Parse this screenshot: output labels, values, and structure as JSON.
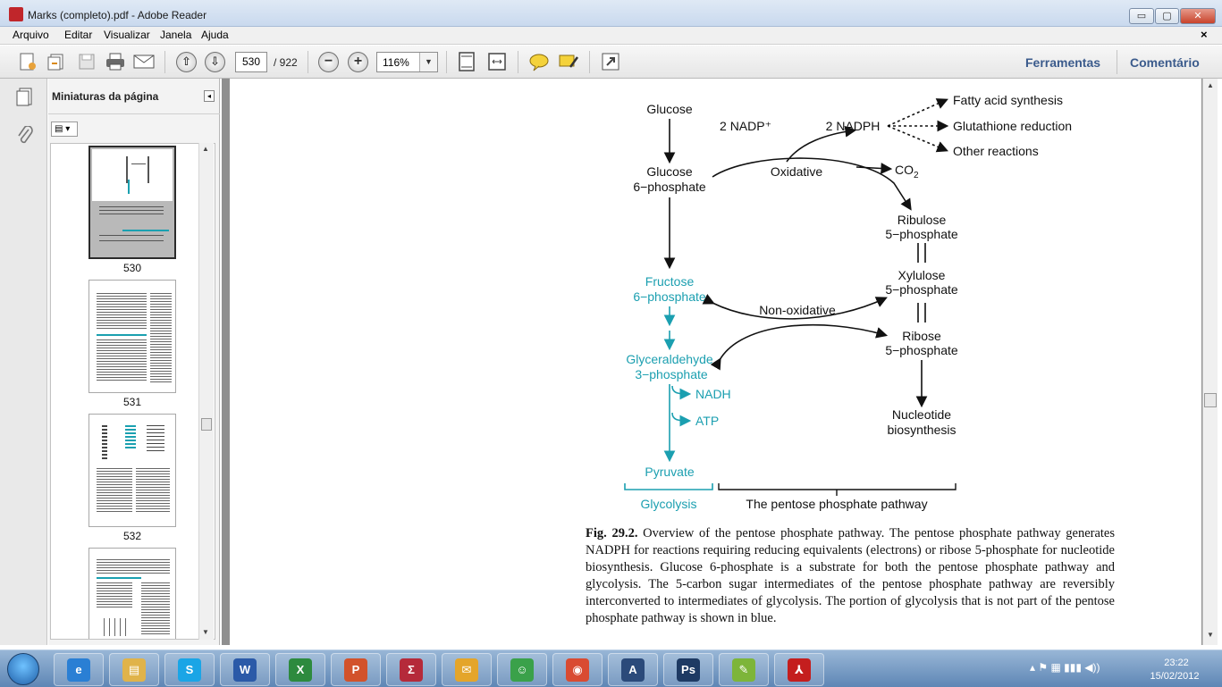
{
  "window": {
    "title": "Marks (completo).pdf - Adobe Reader",
    "min_label": "▭",
    "max_label": "▢",
    "close_label": "✕"
  },
  "menu": {
    "items": [
      "Arquivo",
      "Editar",
      "Visualizar",
      "Janela",
      "Ajuda"
    ],
    "doc_close": "×"
  },
  "toolbar": {
    "current_page": "530",
    "total_pages": "/ 922",
    "zoom": "116%",
    "zoom_out": "−",
    "zoom_in": "+",
    "tools_label": "Ferramentas",
    "comment_label": "Comentário"
  },
  "thumbnails": {
    "header": "Miniaturas da página",
    "collapse": "◂",
    "options": "▤ ▾",
    "pages": [
      "530",
      "531",
      "532"
    ]
  },
  "diagram": {
    "glucose": "Glucose",
    "g6p_1": "Glucose",
    "g6p_2": "6−phosphate",
    "nadp": "2 NADP⁺",
    "nadph": "2 NADPH",
    "oxidative": "Oxidative",
    "co2": "CO",
    "co2_sub": "2",
    "fatty": "Fatty acid synthesis",
    "glutathione": "Glutathione reduction",
    "other": "Other reactions",
    "ribulose_1": "Ribulose",
    "ribulose_2": "5−phosphate",
    "xylulose_1": "Xylulose",
    "xylulose_2": "5−phosphate",
    "ribose_1": "Ribose",
    "ribose_2": "5−phosphate",
    "nucleotide_1": "Nucleotide",
    "nucleotide_2": "biosynthesis",
    "f6p_1": "Fructose",
    "f6p_2": "6−phosphate",
    "nonoxidative": "Non-oxidative",
    "gap_1": "Glyceraldehyde",
    "gap_2": "3−phosphate",
    "nadh": "NADH",
    "atp": "ATP",
    "pyruvate": "Pyruvate",
    "glycolysis": "Glycolysis",
    "ppp": "The pentose phosphate pathway",
    "black": "#111111",
    "teal": "#1b9fb0"
  },
  "caption": {
    "label": "Fig. 29.2.",
    "text": "Overview of the pentose phosphate pathway. The pentose phosphate pathway generates NADPH for reactions requiring reducing equivalents (electrons) or ribose 5-phosphate for nucleotide biosynthesis. Glucose 6-phosphate is a substrate for both the pentose phosphate pathway and glycolysis. The 5-carbon sugar intermediates of the pentose phosphate pathway are reversibly interconverted to intermediates of glycolysis. The portion of glycolysis that is not part of the pentose phosphate pathway is shown in blue."
  },
  "taskbar": {
    "apps": [
      {
        "name": "ie",
        "glyph": "e",
        "color": "#2a7fd4"
      },
      {
        "name": "explorer",
        "glyph": "▤",
        "color": "#e0b34a"
      },
      {
        "name": "skype",
        "glyph": "S",
        "color": "#1aa5e6"
      },
      {
        "name": "word",
        "glyph": "W",
        "color": "#2b5aa8"
      },
      {
        "name": "excel",
        "glyph": "X",
        "color": "#2d8a3e"
      },
      {
        "name": "powerpoint",
        "glyph": "P",
        "color": "#d2522b"
      },
      {
        "name": "statistics",
        "glyph": "Σ",
        "color": "#b52a3a"
      },
      {
        "name": "outlook",
        "glyph": "✉",
        "color": "#e4a52a"
      },
      {
        "name": "messenger",
        "glyph": "☺",
        "color": "#3aa14a"
      },
      {
        "name": "chrome",
        "glyph": "◉",
        "color": "#d94b32"
      },
      {
        "name": "app-a",
        "glyph": "A",
        "color": "#2b4a7a"
      },
      {
        "name": "photoshop",
        "glyph": "Ps",
        "color": "#1e3a63"
      },
      {
        "name": "app-leaf",
        "glyph": "✎",
        "color": "#7db53a"
      },
      {
        "name": "adobe-reader",
        "glyph": "⅄",
        "color": "#c41e1e"
      }
    ],
    "tray": "▴  ⚑  ▦  ▮▮▮  ◀))",
    "time": "23:22",
    "date": "15/02/2012"
  }
}
